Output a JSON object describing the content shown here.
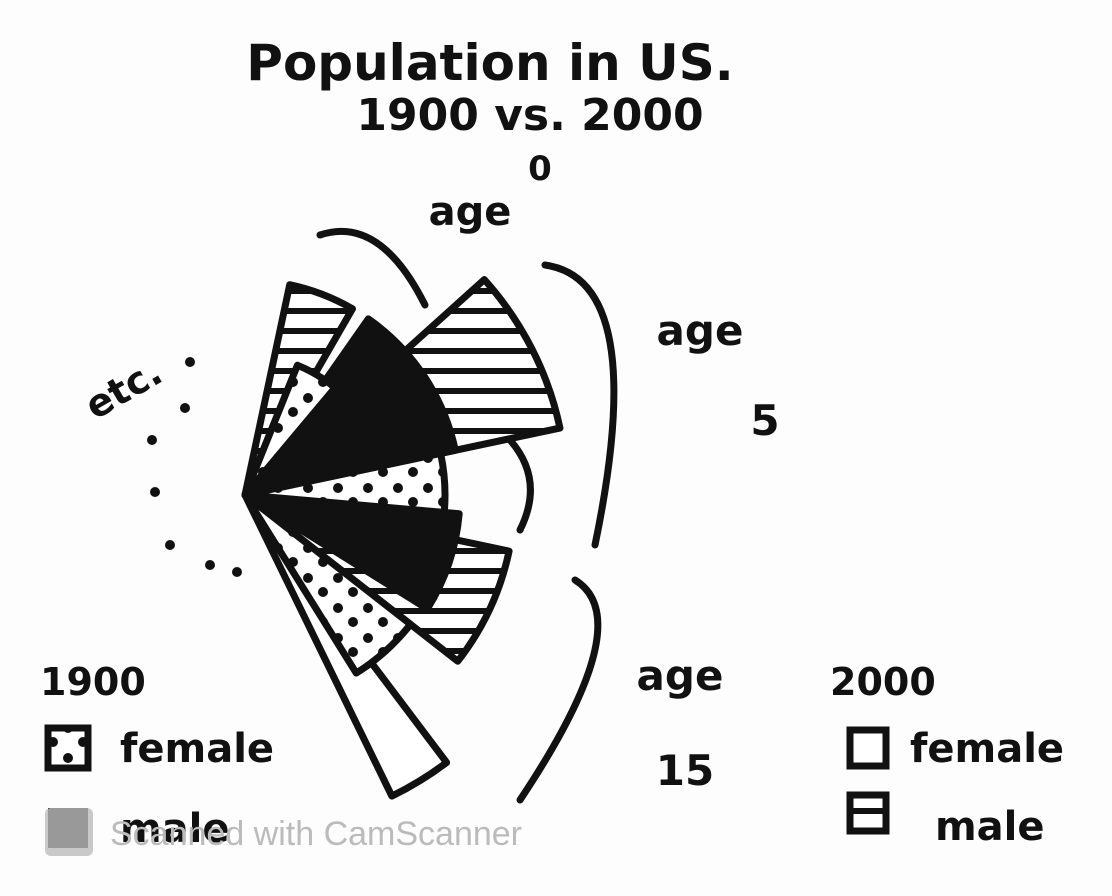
{
  "header": {
    "title": "Population in US.",
    "subtitle": "1900 vs. 2000"
  },
  "annotations": {
    "zero": "0",
    "age_top": "age",
    "age_right": "age",
    "five": "5",
    "age_bottom": "age",
    "fifteen": "15",
    "etc": "etc."
  },
  "legends": [
    {
      "title": "1900",
      "items": [
        "female",
        "male"
      ]
    },
    {
      "title": "2000",
      "items": [
        "female",
        "male"
      ]
    }
  ],
  "watermark": "Scanned with CamScanner"
}
